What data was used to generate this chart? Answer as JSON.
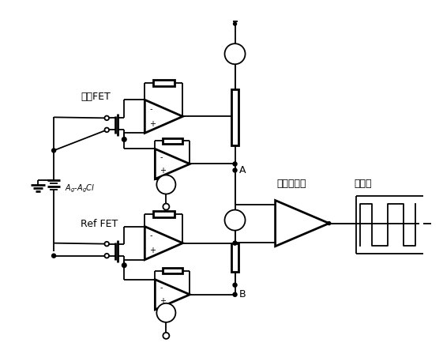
{
  "bg_color": "#ffffff",
  "line_color": "#000000",
  "lw": 1.3,
  "lw2": 2.0,
  "figsize": [
    5.61,
    4.48
  ],
  "dpi": 100,
  "labels": {
    "urea_fet": "尿素FET",
    "ref_fet": "Ref FET",
    "amplifier": "整动放大器",
    "recorder": "记录器",
    "A": "A",
    "B": "B",
    "Ag_AgCl": "Aₕ․-AₔCl"
  }
}
